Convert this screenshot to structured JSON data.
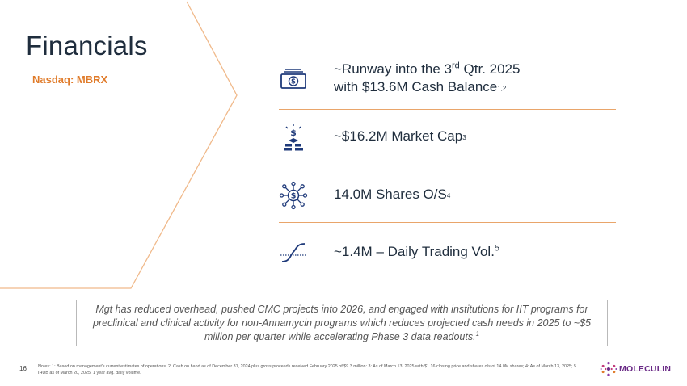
{
  "header": {
    "title": "Financials",
    "ticker": "Nasdaq: MBRX"
  },
  "stats": [
    {
      "icon": "cash-bill-icon",
      "line1_pre": "~Runway into the 3",
      "line1_sup": "rd",
      "line1_post": " Qtr. 2025",
      "line2_pre": "with $13.6M Cash Balance",
      "line2_note": "1,2"
    },
    {
      "icon": "money-bag-coins-icon",
      "pre": "~$16.2M Market Cap",
      "note": "3"
    },
    {
      "icon": "dollar-network-icon",
      "pre": "14.0M Shares O/S",
      "note": "4"
    },
    {
      "icon": "trading-curve-icon",
      "pre": "~1.4M – Daily Trading Vol.",
      "note": "5"
    }
  ],
  "note": {
    "text": "Mgt has reduced overhead, pushed CMC projects into 2026, and engaged with institutions for IIT programs for preclinical and clinical activity for non-Annamycin programs which reduces projected cash needs in 2025 to ~$5 million per quarter while accelerating Phase 3 data readouts.",
    "ref": "1"
  },
  "footer": {
    "page_number": "16",
    "notes": "Notes: 1: Based on management's current estimates of operations. 2: Cash on hand as of December 31, 2024 plus gross proceeds received February 2025 of $9.3 million: 3: As of March 13, 2025 with $1.16 closing price and shares o/s of 14.0M shares; 4: As of March 13, 2025; 5. IHUB as of March 20, 2025, 1 year avg. daily volume.",
    "logo_text": "MOLECULIN"
  },
  "colors": {
    "accent_orange": "#e07b2a",
    "divider": "#e9a56a",
    "icon_navy": "#1f3a7a",
    "logo_purple": "#6a2a86"
  }
}
